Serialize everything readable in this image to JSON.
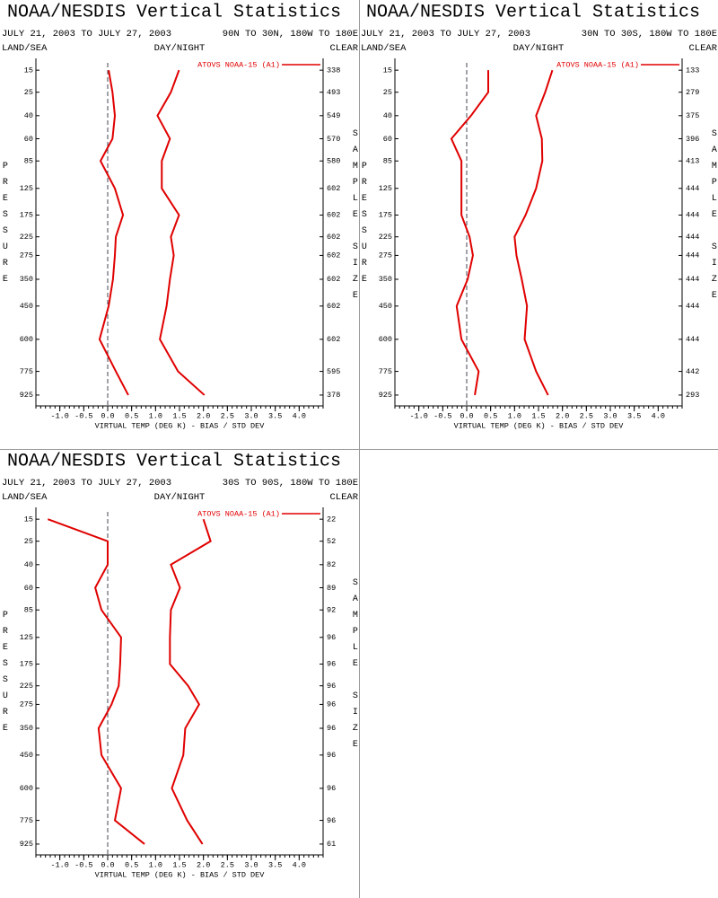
{
  "chart_data": [
    {
      "type": "line",
      "title": "NOAA/NESDIS Vertical Statistics",
      "subtitle": "JULY 21, 2003 TO JULY 27, 2003",
      "region": "90N TO 30N, 180W TO 180E",
      "left_header": "LAND/SEA",
      "center_header": "DAY/NIGHT",
      "right_header": "CLEAR",
      "y_label": "PRESSURE",
      "y2_label": "SAMPLE SIZE",
      "x_label": "VIRTUAL TEMP (DEG K) - BIAS / STD DEV",
      "y": [
        15,
        25,
        40,
        60,
        85,
        125,
        175,
        225,
        275,
        350,
        450,
        600,
        775,
        925
      ],
      "ylim": [
        11,
        1000
      ],
      "sample_size": [
        338,
        493,
        549,
        570,
        580,
        602,
        602,
        602,
        602,
        602,
        602,
        602,
        595,
        378
      ],
      "series": [
        {
          "name": "ATOVS NOAA-15 (A1)",
          "color": "#e00000",
          "values": [
            0.02,
            0.1,
            0.15,
            0.1,
            -0.15,
            0.15,
            0.32,
            0.17,
            0.15,
            0.11,
            0.02,
            -0.17,
            0.17,
            0.43
          ]
        },
        {
          "color": "#e00000",
          "values": [
            1.49,
            1.32,
            1.04,
            1.3,
            1.13,
            1.13,
            1.49,
            1.32,
            1.38,
            1.3,
            1.23,
            1.09,
            1.47,
            2.02
          ]
        }
      ],
      "xlim": [
        -1.5,
        4.5
      ],
      "xticks": [
        {
          "value": -1,
          "label": "-1.0"
        },
        {
          "value": -0.5,
          "label": "-0.5"
        },
        {
          "value": 0,
          "label": "0.0"
        },
        0.5,
        {
          "value": 1,
          "label": "1.0"
        },
        1.5,
        {
          "value": 2,
          "label": "2.0"
        },
        2.5,
        {
          "value": 3,
          "label": "3.0"
        },
        3.5,
        {
          "value": 4,
          "label": "4.0"
        }
      ],
      "legend": "upper right",
      "zero_line": true
    },
    {
      "type": "line",
      "title": "NOAA/NESDIS Vertical Statistics",
      "subtitle": "JULY 21, 2003 TO JULY 27, 2003",
      "region": "30N TO 30S, 180W TO 180E",
      "left_header": "LAND/SEA",
      "center_header": "DAY/NIGHT",
      "right_header": "CLEAR",
      "y_label": "PRESSURE",
      "y2_label": "SAMPLE SIZE",
      "x_label": "VIRTUAL TEMP (DEG K) - BIAS / STD DEV",
      "y": [
        15,
        25,
        40,
        60,
        85,
        125,
        175,
        225,
        275,
        350,
        450,
        600,
        775,
        925
      ],
      "ylim": [
        11,
        1000
      ],
      "sample_size": [
        133,
        279,
        375,
        396,
        413,
        444,
        444,
        444,
        444,
        444,
        444,
        444,
        442,
        293
      ],
      "series": [
        {
          "name": "ATOVS NOAA-15 (A1)",
          "color": "#e00000",
          "values": [
            0.45,
            0.45,
            0.09,
            -0.32,
            -0.11,
            -0.11,
            -0.11,
            0.06,
            0.13,
            0.02,
            -0.21,
            -0.11,
            0.25,
            0.17
          ]
        },
        {
          "color": "#e00000",
          "values": [
            1.79,
            1.64,
            1.45,
            1.57,
            1.58,
            1.45,
            1.23,
            1.0,
            1.04,
            1.15,
            1.26,
            1.21,
            1.45,
            1.7
          ]
        }
      ],
      "xlim": [
        -1.5,
        4.5
      ],
      "xticks": [
        {
          "value": -1,
          "label": "-1.0"
        },
        {
          "value": -0.5,
          "label": "-0.5"
        },
        {
          "value": 0,
          "label": "0.0"
        },
        0.5,
        {
          "value": 1,
          "label": "1.0"
        },
        1.5,
        {
          "value": 2,
          "label": "2.0"
        },
        2.5,
        {
          "value": 3,
          "label": "3.0"
        },
        3.5,
        {
          "value": 4,
          "label": "4.0"
        }
      ],
      "legend": "upper right",
      "zero_line": true
    },
    {
      "type": "line",
      "title": "NOAA/NESDIS Vertical Statistics",
      "subtitle": "JULY 21, 2003 TO JULY 27, 2003",
      "region": "30S TO 90S, 180W TO 180E",
      "left_header": "LAND/SEA",
      "center_header": "DAY/NIGHT",
      "right_header": "CLEAR",
      "y_label": "PRESSURE",
      "y2_label": "SAMPLE SIZE",
      "x_label": "VIRTUAL TEMP (DEG K) - BIAS / STD DEV",
      "y": [
        15,
        25,
        40,
        60,
        85,
        125,
        175,
        225,
        275,
        350,
        450,
        600,
        775,
        925
      ],
      "ylim": [
        11,
        1000
      ],
      "sample_size": [
        22,
        52,
        82,
        89,
        92,
        96,
        96,
        96,
        96,
        96,
        96,
        96,
        96,
        61
      ],
      "series": [
        {
          "name": "ATOVS NOAA-15 (A1)",
          "color": "#e00000",
          "values": [
            -1.25,
            0,
            0,
            -0.26,
            -0.13,
            0.28,
            0.26,
            0.23,
            0.08,
            -0.19,
            -0.13,
            0.28,
            0.15,
            0.77
          ]
        },
        {
          "color": "#e00000",
          "values": [
            2.0,
            2.15,
            1.32,
            1.51,
            1.32,
            1.3,
            1.3,
            1.68,
            1.91,
            1.62,
            1.58,
            1.34,
            1.66,
            1.98
          ]
        }
      ],
      "xlim": [
        -1.5,
        4.5
      ],
      "xticks": [
        {
          "value": -1,
          "label": "-1.0"
        },
        {
          "value": -0.5,
          "label": "-0.5"
        },
        {
          "value": 0,
          "label": "0.0"
        },
        0.5,
        {
          "value": 1,
          "label": "1.0"
        },
        1.5,
        {
          "value": 2,
          "label": "2.0"
        },
        2.5,
        {
          "value": 3,
          "label": "3.0"
        },
        3.5,
        {
          "value": 4,
          "label": "4.0"
        }
      ],
      "legend": "upper right",
      "zero_line": true
    }
  ]
}
